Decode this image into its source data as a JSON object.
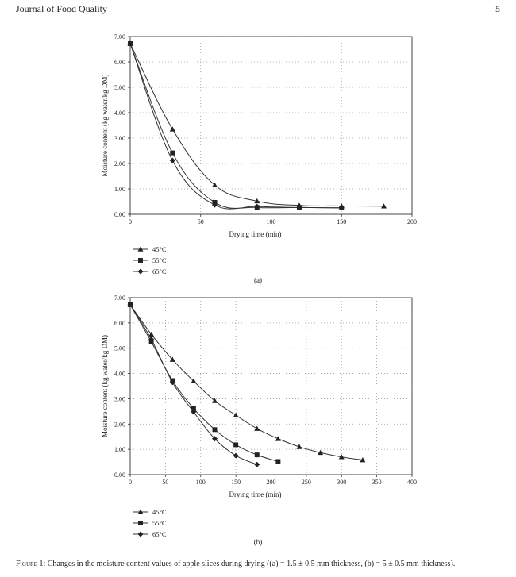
{
  "header": {
    "journal": "Journal of Food Quality",
    "page_number": "5"
  },
  "caption": {
    "lead": "Figure 1:",
    "text": "Changes in the moisture content values of apple slices during drying ((a) = 1.5 ± 0.5 mm thickness, (b) = 5 ± 0.5 mm thickness)."
  },
  "chart_data": [
    {
      "id": "a",
      "type": "line",
      "panel_label": "(a)",
      "xlabel": "Drying time (min)",
      "ylabel": "Moisture content (kg water/kg DM)",
      "xlim": [
        0,
        200
      ],
      "ylim": [
        0,
        7
      ],
      "xticks": [
        "0",
        "50",
        "100",
        "150",
        "200"
      ],
      "yticks": [
        "0.00",
        "1.00",
        "2.00",
        "3.00",
        "4.00",
        "5.00",
        "6.00",
        "7.00"
      ],
      "grid": true,
      "legend_position": "below-left",
      "series": [
        {
          "name": "45°C",
          "marker": "triangle",
          "x": [
            0,
            30,
            60,
            90,
            120,
            150,
            180
          ],
          "y": [
            6.72,
            3.35,
            1.15,
            0.52,
            0.35,
            0.33,
            0.32
          ]
        },
        {
          "name": "55°C",
          "marker": "square",
          "x": [
            0,
            30,
            60,
            90,
            120,
            150
          ],
          "y": [
            6.72,
            2.42,
            0.47,
            0.27,
            0.27,
            0.25
          ]
        },
        {
          "name": "65°C",
          "marker": "diamond",
          "x": [
            0,
            30,
            60,
            90,
            120,
            150
          ],
          "y": [
            6.72,
            2.12,
            0.37,
            0.31,
            0.27,
            0.26
          ]
        }
      ]
    },
    {
      "id": "b",
      "type": "line",
      "panel_label": "(b)",
      "xlabel": "Drying time (min)",
      "ylabel": "Moisture content (kg water/kg DM)",
      "xlim": [
        0,
        400
      ],
      "ylim": [
        0,
        7
      ],
      "xticks": [
        "0",
        "50",
        "100",
        "150",
        "200",
        "250",
        "300",
        "350",
        "400"
      ],
      "yticks": [
        "0.00",
        "1.00",
        "2.00",
        "3.00",
        "4.00",
        "5.00",
        "6.00",
        "7.00"
      ],
      "grid": true,
      "legend_position": "below-left",
      "series": [
        {
          "name": "45°C",
          "marker": "triangle",
          "x": [
            0,
            30,
            60,
            90,
            120,
            150,
            180,
            210,
            240,
            270,
            300,
            330
          ],
          "y": [
            6.72,
            5.55,
            4.55,
            3.7,
            2.92,
            2.35,
            1.82,
            1.42,
            1.1,
            0.87,
            0.7,
            0.58
          ]
        },
        {
          "name": "55°C",
          "marker": "square",
          "x": [
            0,
            30,
            60,
            90,
            120,
            150,
            180,
            210
          ],
          "y": [
            6.72,
            5.25,
            3.72,
            2.62,
            1.78,
            1.18,
            0.78,
            0.52
          ]
        },
        {
          "name": "65°C",
          "marker": "diamond",
          "x": [
            0,
            30,
            60,
            90,
            120,
            150,
            180
          ],
          "y": [
            6.72,
            5.35,
            3.65,
            2.48,
            1.42,
            0.75,
            0.4
          ]
        }
      ]
    }
  ]
}
